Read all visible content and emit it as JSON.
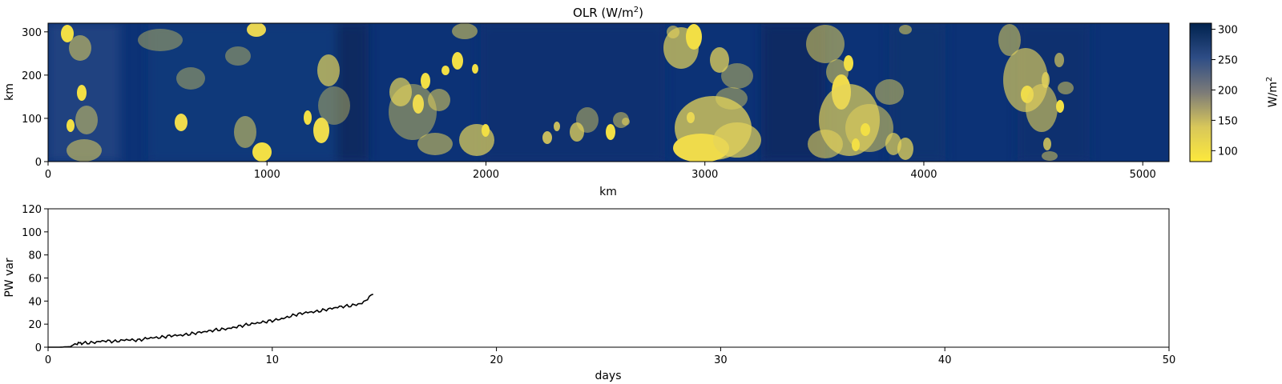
{
  "chart_data": [
    {
      "type": "heatmap",
      "title_main": "OLR (W/m",
      "title_sup": "2",
      "title_close": ")",
      "xlabel": "km",
      "ylabel": "km",
      "xlim": [
        0,
        5120
      ],
      "ylim": [
        0,
        320
      ],
      "xticks": [
        "0",
        "1000",
        "2000",
        "3000",
        "4000",
        "5000"
      ],
      "yticks": [
        "0",
        "100",
        "200",
        "300"
      ],
      "colormap": "cividis_r",
      "colors": {
        "low": "#fde93c",
        "mid": "#7c7b78",
        "high": "#00224e"
      },
      "colorbar": {
        "label_main": "W/m",
        "label_sup": "2",
        "range": [
          82,
          310
        ],
        "ticks": [
          "100",
          "150",
          "200",
          "250",
          "300"
        ]
      }
    },
    {
      "type": "line",
      "xlabel": "days",
      "ylabel": "PW var",
      "xlim": [
        0,
        50
      ],
      "ylim": [
        0,
        120
      ],
      "xticks": [
        "0",
        "10",
        "20",
        "30",
        "40",
        "50"
      ],
      "yticks": [
        "0",
        "20",
        "40",
        "60",
        "80",
        "100",
        "120"
      ],
      "line_color": "#000000",
      "x": [
        0,
        0.5,
        1.0,
        1.2,
        1.5,
        2.0,
        2.5,
        3.0,
        3.5,
        4.0,
        4.5,
        5.0,
        5.5,
        6.0,
        6.5,
        7.0,
        7.5,
        8.0,
        8.5,
        9.0,
        9.5,
        10.0,
        10.5,
        11.0,
        11.5,
        12.0,
        12.5,
        13.0,
        13.5,
        14.0,
        14.5
      ],
      "y": [
        0,
        0,
        0.5,
        3,
        3.5,
        4,
        5.5,
        5,
        6.5,
        6,
        8,
        8.5,
        10,
        10.5,
        12,
        13.5,
        15,
        16,
        18,
        20,
        21.5,
        23,
        25,
        28,
        30,
        31,
        33,
        35,
        36,
        38,
        46
      ]
    }
  ]
}
